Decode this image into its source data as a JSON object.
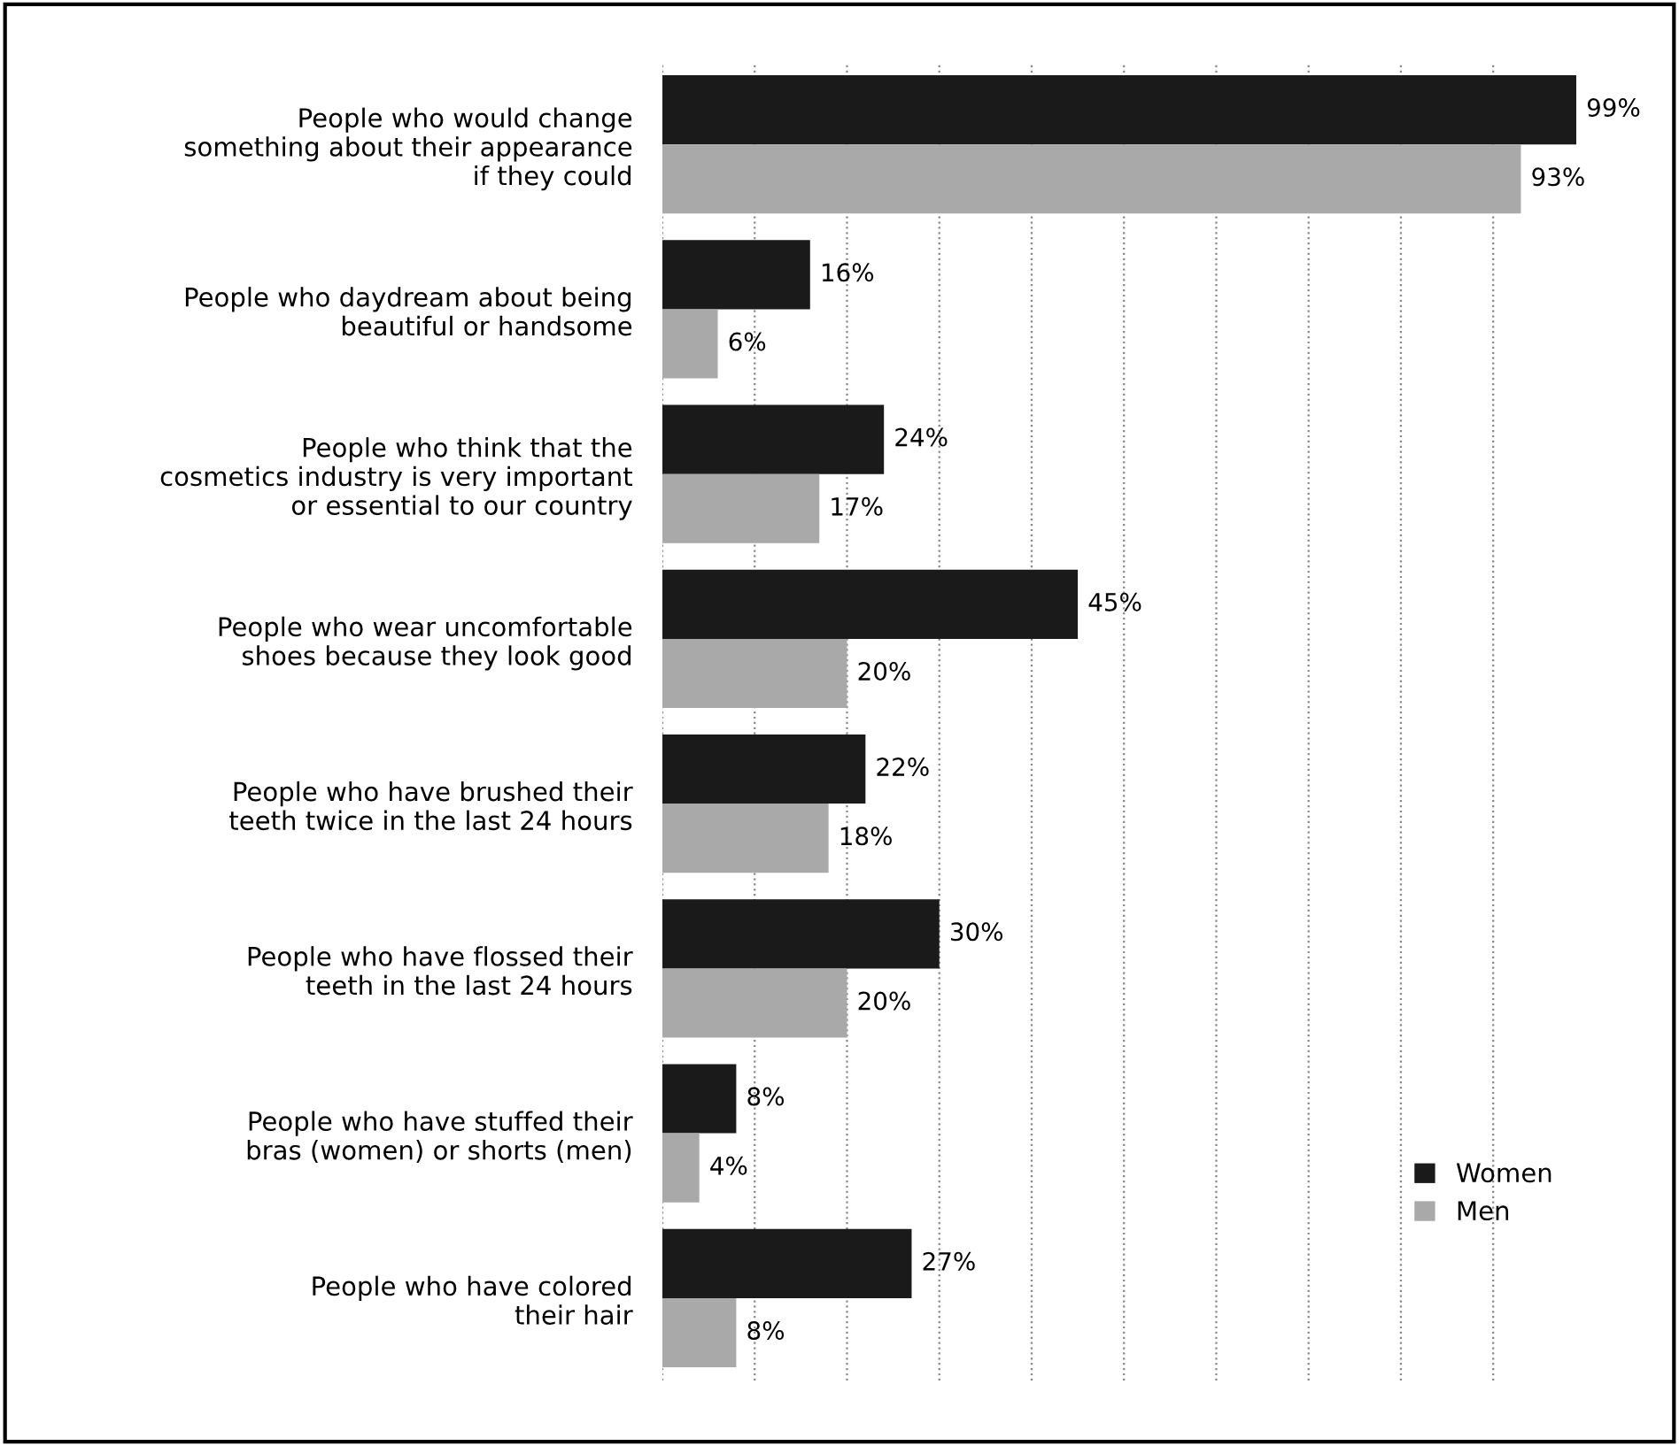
{
  "chart_data": {
    "type": "bar",
    "orientation": "horizontal",
    "categories": [
      "People who would change\nsomething about their appearance\nif they could",
      "People who daydream about being\nbeautiful or handsome",
      "People who think that the\ncosmetics industry is very important\nor essential to our country",
      "People who wear uncomfortable\nshoes because they look good",
      "People who have brushed their\nteeth twice in the last 24 hours",
      "People who have flossed their\nteeth in the last 24 hours",
      "People who have stuffed their\nbras (women) or shorts (men)",
      "People who have colored\ntheir hair"
    ],
    "series": [
      {
        "name": "Women",
        "color": "#1a1a1a",
        "values": [
          99,
          16,
          24,
          45,
          22,
          30,
          8,
          27
        ],
        "value_labels": [
          "99%",
          "16%",
          "24%",
          "45%",
          "22%",
          "30%",
          "8%",
          "27%"
        ]
      },
      {
        "name": "Men",
        "color": "#a9a9a9",
        "values": [
          93,
          6,
          17,
          20,
          18,
          20,
          4,
          8
        ],
        "value_labels": [
          "93%",
          "6%",
          "17%",
          "20%",
          "18%",
          "20%",
          "4%",
          "8%"
        ]
      }
    ],
    "tick_labels": "y",
    "grid": "x",
    "legend": "bottom right"
  }
}
